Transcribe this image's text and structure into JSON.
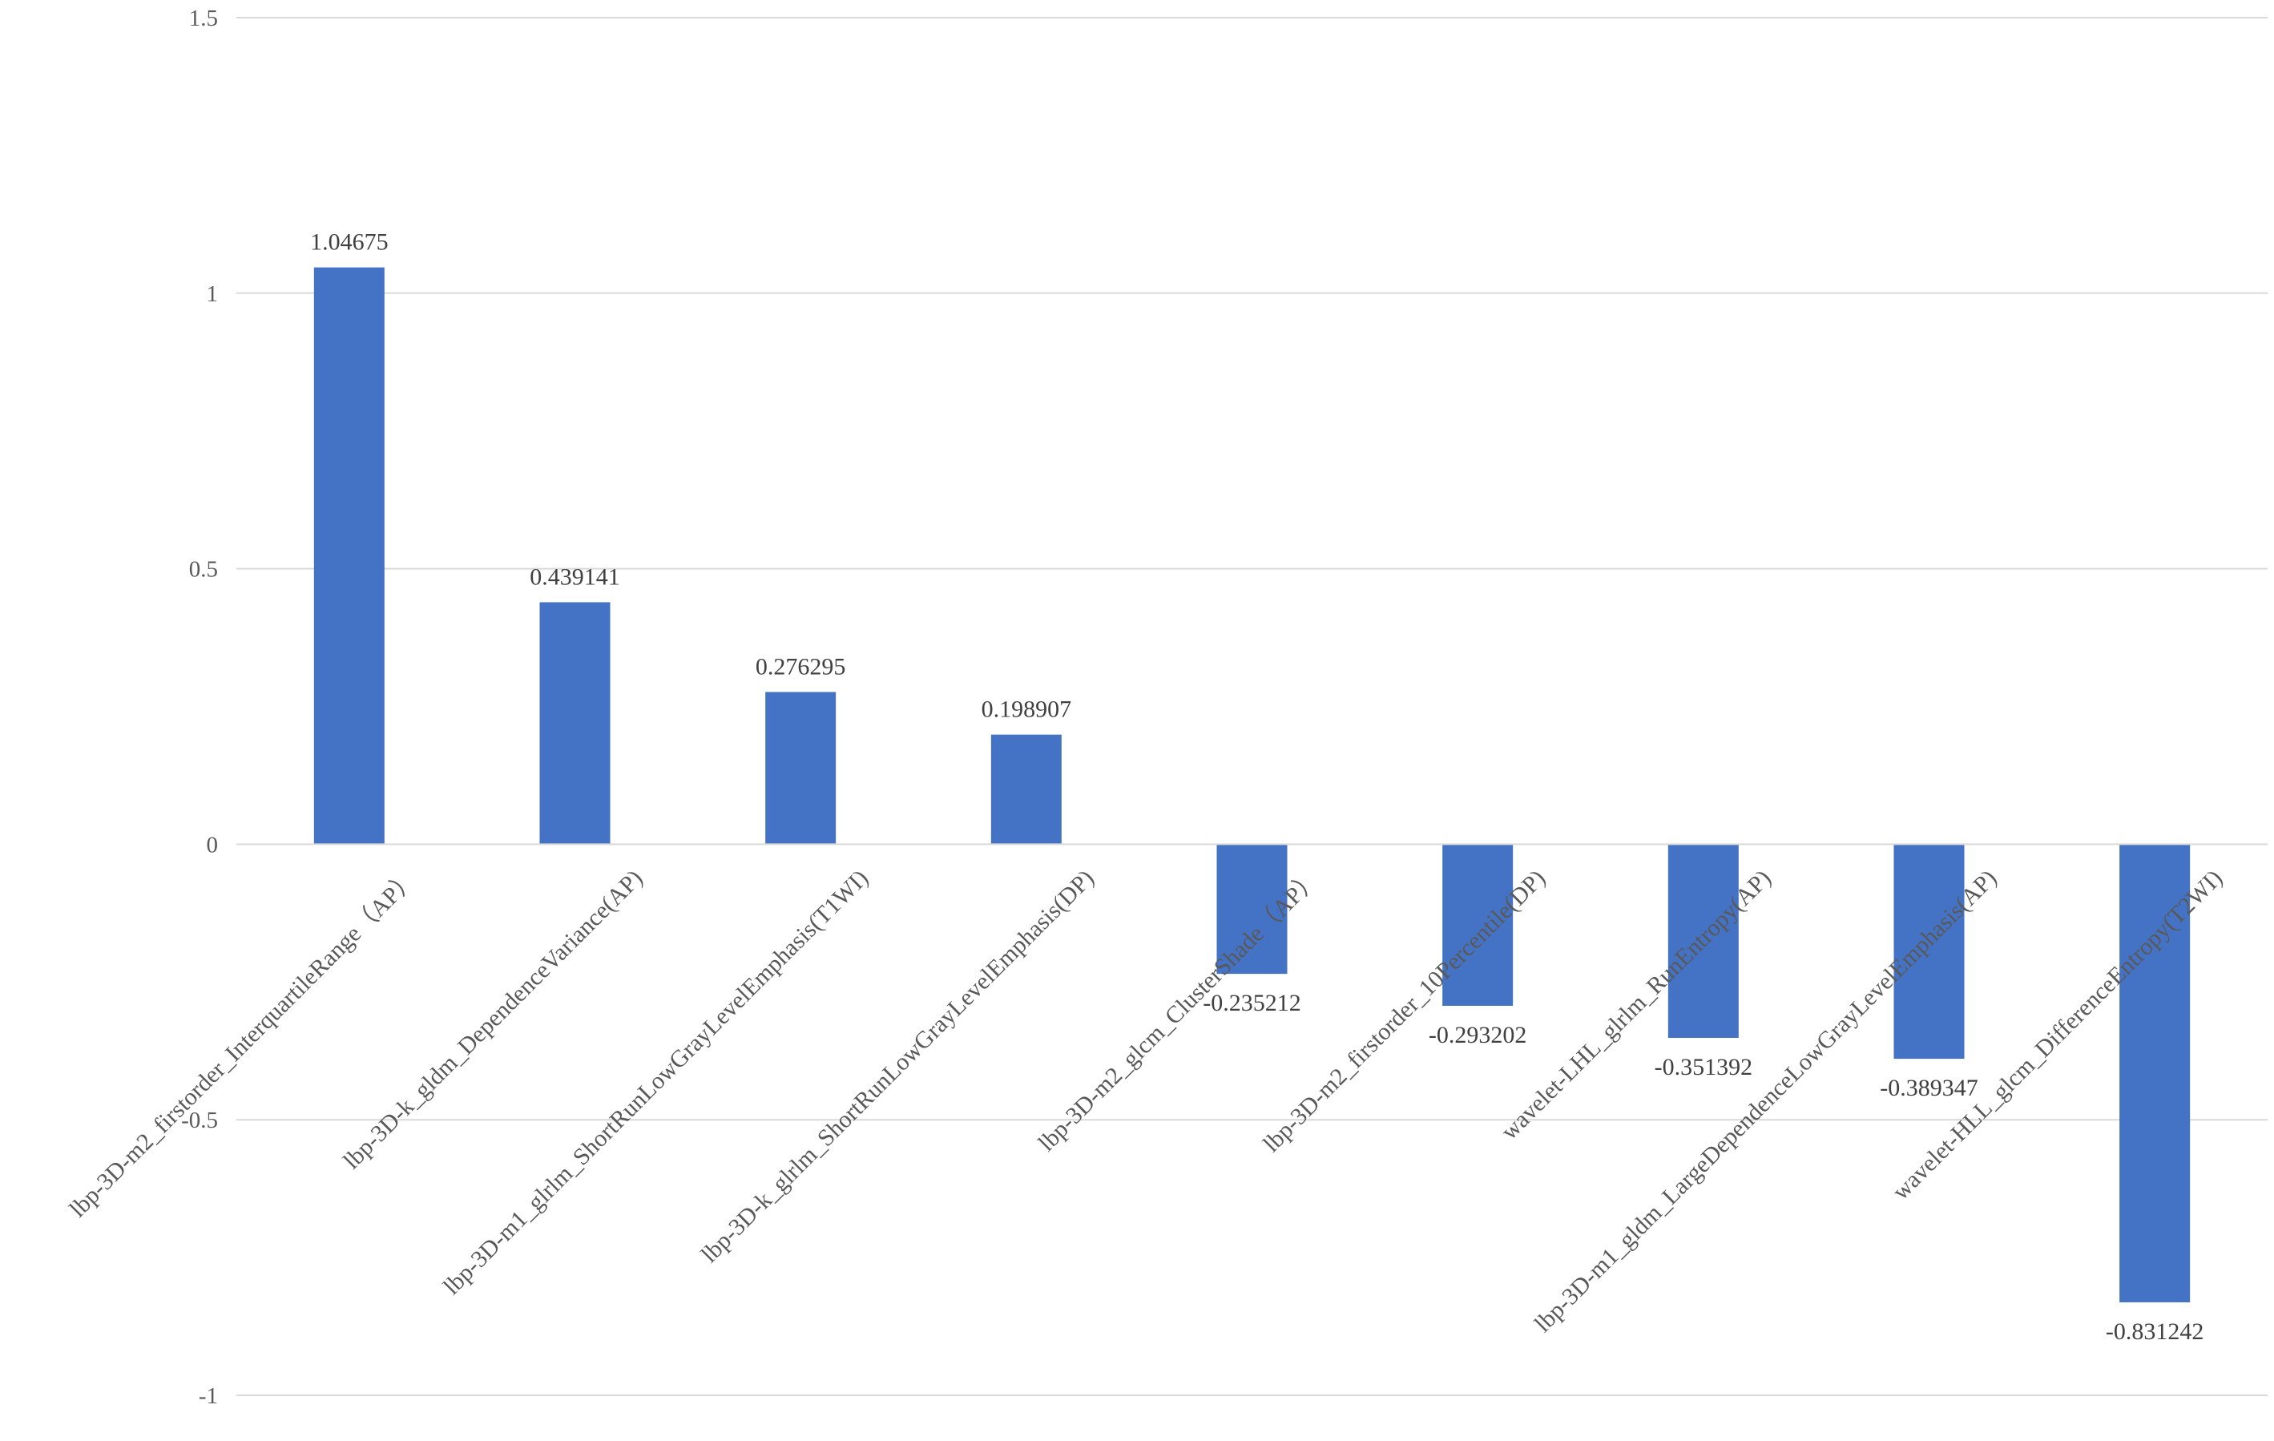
{
  "chart_data": {
    "type": "bar",
    "title": "",
    "xlabel": "",
    "ylabel": "",
    "ylim": [
      -1,
      1.5
    ],
    "yticks": [
      -1,
      -0.5,
      0,
      0.5,
      1,
      1.5
    ],
    "ytick_labels": [
      "-1",
      "-0.5",
      "0",
      "0.5",
      "1",
      "1.5"
    ],
    "grid": true,
    "legend": "none",
    "bar_color": "#4472C4",
    "categories": [
      "lbp-3D-m2_firstorder_InterquartileRange（AP）",
      "lbp-3D-k_gldm_DependenceVariance(AP)",
      "lbp-3D-m1_glrlm_ShortRunLowGrayLevelEmphasis(T1WI)",
      "lbp-3D-k_glrlm_ShortRunLowGrayLevelEmphasis(DP)",
      "lbp-3D-m2_glcm_ClusterShade（AP）",
      "lbp-3D-m2_firstorder_10Percentile(DP)",
      "wavelet-LHL_glrlm_RunEntropy(AP)",
      "lbp-3D-m1_gldm_LargeDependenceLowGrayLevelEmphasis(AP)",
      "wavelet-HLL_glcm_DifferenceEntropy(T2WI)"
    ],
    "values": [
      1.04675,
      0.439141,
      0.276295,
      0.198907,
      -0.235212,
      -0.293202,
      -0.351392,
      -0.389347,
      -0.831242
    ],
    "data_labels": [
      "1.04675",
      "0.439141",
      "0.276295",
      "0.198907",
      "-0.235212",
      "-0.293202",
      "-0.351392",
      "-0.389347",
      "-0.831242"
    ]
  }
}
